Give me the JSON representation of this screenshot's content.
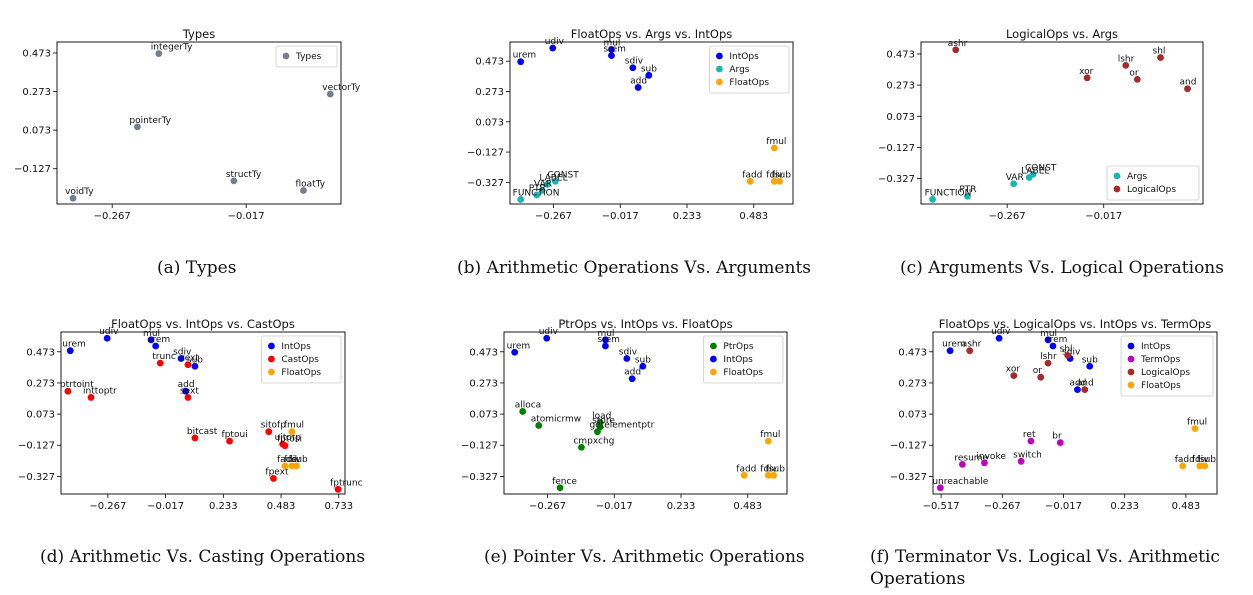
{
  "colors": {
    "Types": "#708090",
    "IntOps": "#0000ff",
    "Args": "#1bb5b5",
    "FloatOps": "#ffa500",
    "LogicalOps": "#a52a2a",
    "CastOps": "#ff0000",
    "PtrOps": "#008000",
    "TermOps": "#c000c0"
  },
  "chart_data": [
    {
      "type": "scatter",
      "title": "Types",
      "caption": "(a) Types",
      "xticks": [
        "−0.267",
        "−0.017"
      ],
      "yticks": [
        "0.473",
        "0.273",
        "0.073",
        "−0.127"
      ],
      "legend": "top-right",
      "series": [
        {
          "name": "Types",
          "points": [
            {
              "label": "integerTy",
              "x": -0.18,
              "y": 0.47
            },
            {
              "label": "vectorTy",
              "x": 0.14,
              "y": 0.26
            },
            {
              "label": "pointerTy",
              "x": -0.22,
              "y": 0.09
            },
            {
              "label": "structTy",
              "x": -0.04,
              "y": -0.19
            },
            {
              "label": "floatTy",
              "x": 0.09,
              "y": -0.24
            },
            {
              "label": "voidTy",
              "x": -0.34,
              "y": -0.28
            }
          ]
        }
      ]
    },
    {
      "type": "scatter",
      "title": "FloatOps vs. Args vs. IntOps",
      "caption": "(b) Arithmetic Operations Vs. Arguments",
      "xticks": [
        "−0.267",
        "−0.017",
        "0.233",
        "0.483"
      ],
      "yticks": [
        "0.473",
        "0.273",
        "0.073",
        "−0.127",
        "−0.327"
      ],
      "legend": "top-right",
      "series": [
        {
          "name": "IntOps",
          "points": [
            {
              "label": "udiv",
              "x": -0.27,
              "y": 0.56
            },
            {
              "label": "urem",
              "x": -0.39,
              "y": 0.47
            },
            {
              "label": "mul",
              "x": -0.05,
              "y": 0.55
            },
            {
              "label": "srem",
              "x": -0.05,
              "y": 0.51
            },
            {
              "label": "sdiv",
              "x": 0.03,
              "y": 0.43
            },
            {
              "label": "sub",
              "x": 0.09,
              "y": 0.38
            },
            {
              "label": "add",
              "x": 0.05,
              "y": 0.3
            }
          ]
        },
        {
          "name": "Args",
          "points": [
            {
              "label": "CONST",
              "x": -0.26,
              "y": -0.32
            },
            {
              "label": "LABEL",
              "x": -0.29,
              "y": -0.34
            },
            {
              "label": "VAR",
              "x": -0.31,
              "y": -0.38
            },
            {
              "label": "PTR",
              "x": -0.33,
              "y": -0.41
            },
            {
              "label": "FUNCTION",
              "x": -0.39,
              "y": -0.44
            }
          ]
        },
        {
          "name": "FloatOps",
          "points": [
            {
              "label": "fmul",
              "x": 0.56,
              "y": -0.1
            },
            {
              "label": "fadd",
              "x": 0.47,
              "y": -0.32
            },
            {
              "label": "fdiv",
              "x": 0.56,
              "y": -0.32
            },
            {
              "label": "fsub",
              "x": 0.58,
              "y": -0.32
            }
          ]
        }
      ]
    },
    {
      "type": "scatter",
      "title": "LogicalOps vs. Args",
      "caption": "(c) Arguments Vs. Logical Operations",
      "xticks": [
        "−0.267",
        "−0.017"
      ],
      "yticks": [
        "0.473",
        "0.273",
        "0.073",
        "−0.127",
        "−0.327"
      ],
      "legend": "bottom-right",
      "series": [
        {
          "name": "Args",
          "points": [
            {
              "label": "CONST",
              "x": -0.2,
              "y": -0.3
            },
            {
              "label": "LABEL",
              "x": -0.21,
              "y": -0.32
            },
            {
              "label": "VAR",
              "x": -0.25,
              "y": -0.36
            },
            {
              "label": "PTR",
              "x": -0.37,
              "y": -0.44
            },
            {
              "label": "FUNCTION",
              "x": -0.46,
              "y": -0.46
            }
          ]
        },
        {
          "name": "LogicalOps",
          "points": [
            {
              "label": "ashr",
              "x": -0.4,
              "y": 0.5
            },
            {
              "label": "shl",
              "x": 0.13,
              "y": 0.45
            },
            {
              "label": "lshr",
              "x": 0.04,
              "y": 0.4
            },
            {
              "label": "xor",
              "x": -0.06,
              "y": 0.32
            },
            {
              "label": "or",
              "x": 0.07,
              "y": 0.31
            },
            {
              "label": "and",
              "x": 0.2,
              "y": 0.25
            }
          ]
        }
      ]
    },
    {
      "type": "scatter",
      "title": "FloatOps vs. IntOps vs. CastOps",
      "caption": "(d) Arithmetic Vs. Casting Operations",
      "xticks": [
        "−0.267",
        "−0.017",
        "0.233",
        "0.483",
        "0.733"
      ],
      "yticks": [
        "0.473",
        "0.273",
        "0.073",
        "−0.127",
        "−0.327"
      ],
      "legend": "top-right",
      "series": [
        {
          "name": "IntOps",
          "points": [
            {
              "label": "udiv",
              "x": -0.27,
              "y": 0.56
            },
            {
              "label": "urem",
              "x": -0.43,
              "y": 0.48
            },
            {
              "label": "mul",
              "x": -0.08,
              "y": 0.55
            },
            {
              "label": "srem",
              "x": -0.06,
              "y": 0.51
            },
            {
              "label": "sdiv",
              "x": 0.05,
              "y": 0.43
            },
            {
              "label": "sub",
              "x": 0.11,
              "y": 0.38
            },
            {
              "label": "add",
              "x": 0.07,
              "y": 0.22
            }
          ]
        },
        {
          "name": "CastOps",
          "points": [
            {
              "label": "trunc",
              "x": -0.04,
              "y": 0.4
            },
            {
              "label": "zext",
              "x": 0.08,
              "y": 0.39
            },
            {
              "label": "sext",
              "x": 0.08,
              "y": 0.18
            },
            {
              "label": "ptrtoint",
              "x": -0.44,
              "y": 0.22
            },
            {
              "label": "inttoptr",
              "x": -0.34,
              "y": 0.18
            },
            {
              "label": "bitcast",
              "x": 0.11,
              "y": -0.08
            },
            {
              "label": "fptoui",
              "x": 0.26,
              "y": -0.1
            },
            {
              "label": "sitofp",
              "x": 0.43,
              "y": -0.04
            },
            {
              "label": "uitofp",
              "x": 0.49,
              "y": -0.12
            },
            {
              "label": "fptosi",
              "x": 0.5,
              "y": -0.13
            },
            {
              "label": "fpext",
              "x": 0.45,
              "y": -0.34
            },
            {
              "label": "fptrunc",
              "x": 0.73,
              "y": -0.41
            }
          ]
        },
        {
          "name": "FloatOps",
          "points": [
            {
              "label": "fmul",
              "x": 0.53,
              "y": -0.04
            },
            {
              "label": "fadd",
              "x": 0.5,
              "y": -0.26
            },
            {
              "label": "fdiv",
              "x": 0.53,
              "y": -0.26
            },
            {
              "label": "fsub",
              "x": 0.55,
              "y": -0.26
            }
          ]
        }
      ]
    },
    {
      "type": "scatter",
      "title": "PtrOps vs. IntOps vs. FloatOps",
      "caption": "(e) Pointer Vs. Arithmetic Operations",
      "xticks": [
        "−0.267",
        "−0.017",
        "0.233",
        "0.483"
      ],
      "yticks": [
        "0.473",
        "0.273",
        "0.073",
        "−0.127",
        "−0.327"
      ],
      "legend": "top-right",
      "series": [
        {
          "name": "PtrOps",
          "points": [
            {
              "label": "alloca",
              "x": -0.36,
              "y": 0.09
            },
            {
              "label": "atomicrmw",
              "x": -0.3,
              "y": 0.0
            },
            {
              "label": "load",
              "x": -0.07,
              "y": 0.02
            },
            {
              "label": "store",
              "x": -0.07,
              "y": -0.01
            },
            {
              "label": "getelementptr",
              "x": -0.08,
              "y": -0.04
            },
            {
              "label": "cmpxchg",
              "x": -0.14,
              "y": -0.14
            },
            {
              "label": "fence",
              "x": -0.22,
              "y": -0.4
            }
          ]
        },
        {
          "name": "IntOps",
          "points": [
            {
              "label": "udiv",
              "x": -0.27,
              "y": 0.56
            },
            {
              "label": "urem",
              "x": -0.39,
              "y": 0.47
            },
            {
              "label": "mul",
              "x": -0.05,
              "y": 0.55
            },
            {
              "label": "srem",
              "x": -0.05,
              "y": 0.51
            },
            {
              "label": "sdiv",
              "x": 0.03,
              "y": 0.43
            },
            {
              "label": "sub",
              "x": 0.09,
              "y": 0.38
            },
            {
              "label": "add",
              "x": 0.05,
              "y": 0.3
            }
          ]
        },
        {
          "name": "FloatOps",
          "points": [
            {
              "label": "fmul",
              "x": 0.56,
              "y": -0.1
            },
            {
              "label": "fadd",
              "x": 0.47,
              "y": -0.32
            },
            {
              "label": "fdiv",
              "x": 0.56,
              "y": -0.32
            },
            {
              "label": "fsub",
              "x": 0.58,
              "y": -0.32
            }
          ]
        }
      ]
    },
    {
      "type": "scatter",
      "title": "FloatOps vs. LogicalOps vs. IntOps vs. TermOps",
      "caption": "(f) Terminator Vs. Logical Vs. Arithmetic Operations",
      "xticks": [
        "−0.517",
        "−0.267",
        "−0.017",
        "0.233",
        "0.483"
      ],
      "yticks": [
        "0.473",
        "0.273",
        "0.073",
        "−0.127",
        "−0.327"
      ],
      "legend": "top-right",
      "series": [
        {
          "name": "IntOps",
          "points": [
            {
              "label": "udiv",
              "x": -0.28,
              "y": 0.56
            },
            {
              "label": "urem",
              "x": -0.48,
              "y": 0.48
            },
            {
              "label": "mul",
              "x": -0.08,
              "y": 0.55
            },
            {
              "label": "srem",
              "x": -0.06,
              "y": 0.51
            },
            {
              "label": "sdiv",
              "x": 0.01,
              "y": 0.43
            },
            {
              "label": "sub",
              "x": 0.09,
              "y": 0.38
            },
            {
              "label": "add",
              "x": 0.04,
              "y": 0.23
            }
          ]
        },
        {
          "name": "TermOps",
          "points": [
            {
              "label": "ret",
              "x": -0.15,
              "y": -0.1
            },
            {
              "label": "br",
              "x": -0.03,
              "y": -0.11
            },
            {
              "label": "switch",
              "x": -0.19,
              "y": -0.23
            },
            {
              "label": "resume",
              "x": -0.43,
              "y": -0.25
            },
            {
              "label": "invoke",
              "x": -0.34,
              "y": -0.24
            },
            {
              "label": "unreachable",
              "x": -0.52,
              "y": -0.4
            }
          ]
        },
        {
          "name": "LogicalOps",
          "points": [
            {
              "label": "ashr",
              "x": -0.4,
              "y": 0.48
            },
            {
              "label": "shl",
              "x": 0.0,
              "y": 0.45
            },
            {
              "label": "lshr",
              "x": -0.08,
              "y": 0.4
            },
            {
              "label": "xor",
              "x": -0.22,
              "y": 0.32
            },
            {
              "label": "or",
              "x": -0.11,
              "y": 0.31
            },
            {
              "label": "and",
              "x": 0.07,
              "y": 0.23
            }
          ]
        },
        {
          "name": "FloatOps",
          "points": [
            {
              "label": "fmul",
              "x": 0.52,
              "y": -0.02
            },
            {
              "label": "fadd",
              "x": 0.47,
              "y": -0.26
            },
            {
              "label": "fdiv",
              "x": 0.54,
              "y": -0.26
            },
            {
              "label": "fsub",
              "x": 0.56,
              "y": -0.26
            }
          ]
        }
      ]
    }
  ]
}
